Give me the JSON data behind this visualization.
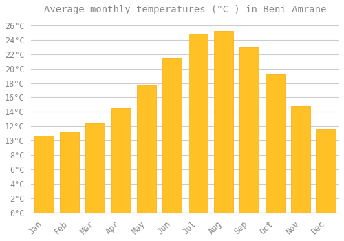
{
  "title": "Average monthly temperatures (°C ) in Beni Amrane",
  "months": [
    "Jan",
    "Feb",
    "Mar",
    "Apr",
    "May",
    "Jun",
    "Jul",
    "Aug",
    "Sep",
    "Oct",
    "Nov",
    "Dec"
  ],
  "values": [
    10.7,
    11.3,
    12.4,
    14.5,
    17.7,
    21.5,
    24.8,
    25.2,
    23.0,
    19.2,
    14.8,
    11.6
  ],
  "bar_color": "#FFC125",
  "bar_edge_color": "#FFA500",
  "background_color": "#FFFFFF",
  "grid_color": "#CCCCCC",
  "text_color": "#888888",
  "ylim": [
    0,
    27
  ],
  "yticks": [
    0,
    2,
    4,
    6,
    8,
    10,
    12,
    14,
    16,
    18,
    20,
    22,
    24,
    26
  ],
  "title_fontsize": 10,
  "tick_fontsize": 8.5
}
